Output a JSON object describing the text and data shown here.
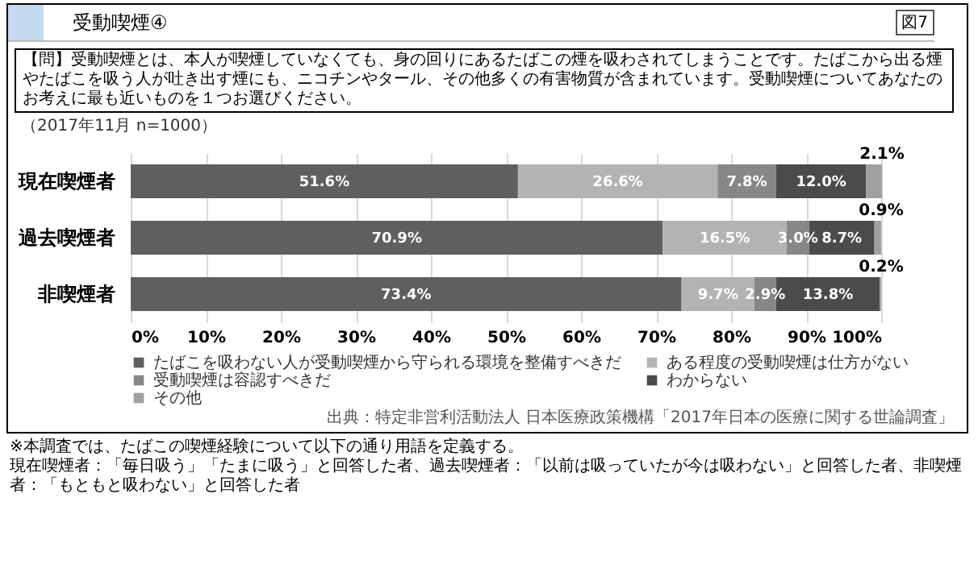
{
  "chart_data": {
    "type": "bar",
    "orientation": "horizontal",
    "stacked": true,
    "title": "受動喫煙④",
    "subtitle": "【問】受動喫煙とは、本人が喫煙していなくても、身の回りにあるたばこの煙を吸わされてしまうことです。たばこから出る煙やたばこを吸う人が吐き出す煙にも、ニコチンやタール、その他多くの有害物質が含まれています。受動喫煙についてあなたのお考えに最も近いものを１つお選びください。",
    "annotations": [
      "図7",
      "（2017年11月 n=1000）",
      "出典：特定非営利活動法人 日本医療政策機構「2017年日本の医療に関する世論調査」",
      "※本調査では、たばこの喫煙経験について以下の通り用語を定義する。",
      "現在喫煙者：「毎日吸う」「たまに吸う」と回答した者、過去喫煙者：「以前は吸っていたが今は吸わない」と回答した者、非喫煙者：「もともと吸わない」と回答した者"
    ],
    "categories": [
      "現在喫煙者",
      "過去喫煙者",
      "非喫煙者"
    ],
    "series": [
      {
        "name": "たばこを吸わない人が受動喫煙から守られる環境を整備すべきだ",
        "color": "#5f5f5f",
        "values": [
          51.6,
          70.9,
          73.4
        ],
        "value_labels": [
          "51.6%",
          "70.9%",
          "73.4%"
        ]
      },
      {
        "name": "ある程度の受動喫煙は仕方がない",
        "color": "#b3b3b3",
        "values": [
          26.6,
          16.5,
          9.7
        ],
        "value_labels": [
          "26.6%",
          "16.5%",
          "9.7%"
        ]
      },
      {
        "name": "受動喫煙は容認すべきだ",
        "color": "#878787",
        "values": [
          7.8,
          3.0,
          2.9
        ],
        "value_labels": [
          "7.8%",
          "3.0%",
          "2.9%"
        ]
      },
      {
        "name": "わからない",
        "color": "#4b4b4b",
        "values": [
          12.0,
          8.7,
          13.8
        ],
        "value_labels": [
          "12.0%",
          "8.7%",
          "13.8%"
        ]
      },
      {
        "name": "その他",
        "color": "#a0a0a0",
        "values": [
          2.1,
          0.9,
          0.2
        ],
        "value_labels": [
          "2.1%",
          "0.9%",
          "0.2%"
        ]
      }
    ],
    "xlim": [
      0,
      100
    ],
    "xticks": [
      {
        "value": 0,
        "label": "0%"
      },
      {
        "value": 10,
        "label": "10%"
      },
      {
        "value": 20,
        "label": "20%"
      },
      {
        "value": 30,
        "label": "30%"
      },
      {
        "value": 40,
        "label": "40%"
      },
      {
        "value": 50,
        "label": "50%"
      },
      {
        "value": 60,
        "label": "60%"
      },
      {
        "value": 70,
        "label": "70%"
      },
      {
        "value": 80,
        "label": "80%"
      },
      {
        "value": 90,
        "label": "90%"
      },
      {
        "value": 100,
        "label": "100%"
      }
    ],
    "grid": "x",
    "legend": "bottom"
  }
}
